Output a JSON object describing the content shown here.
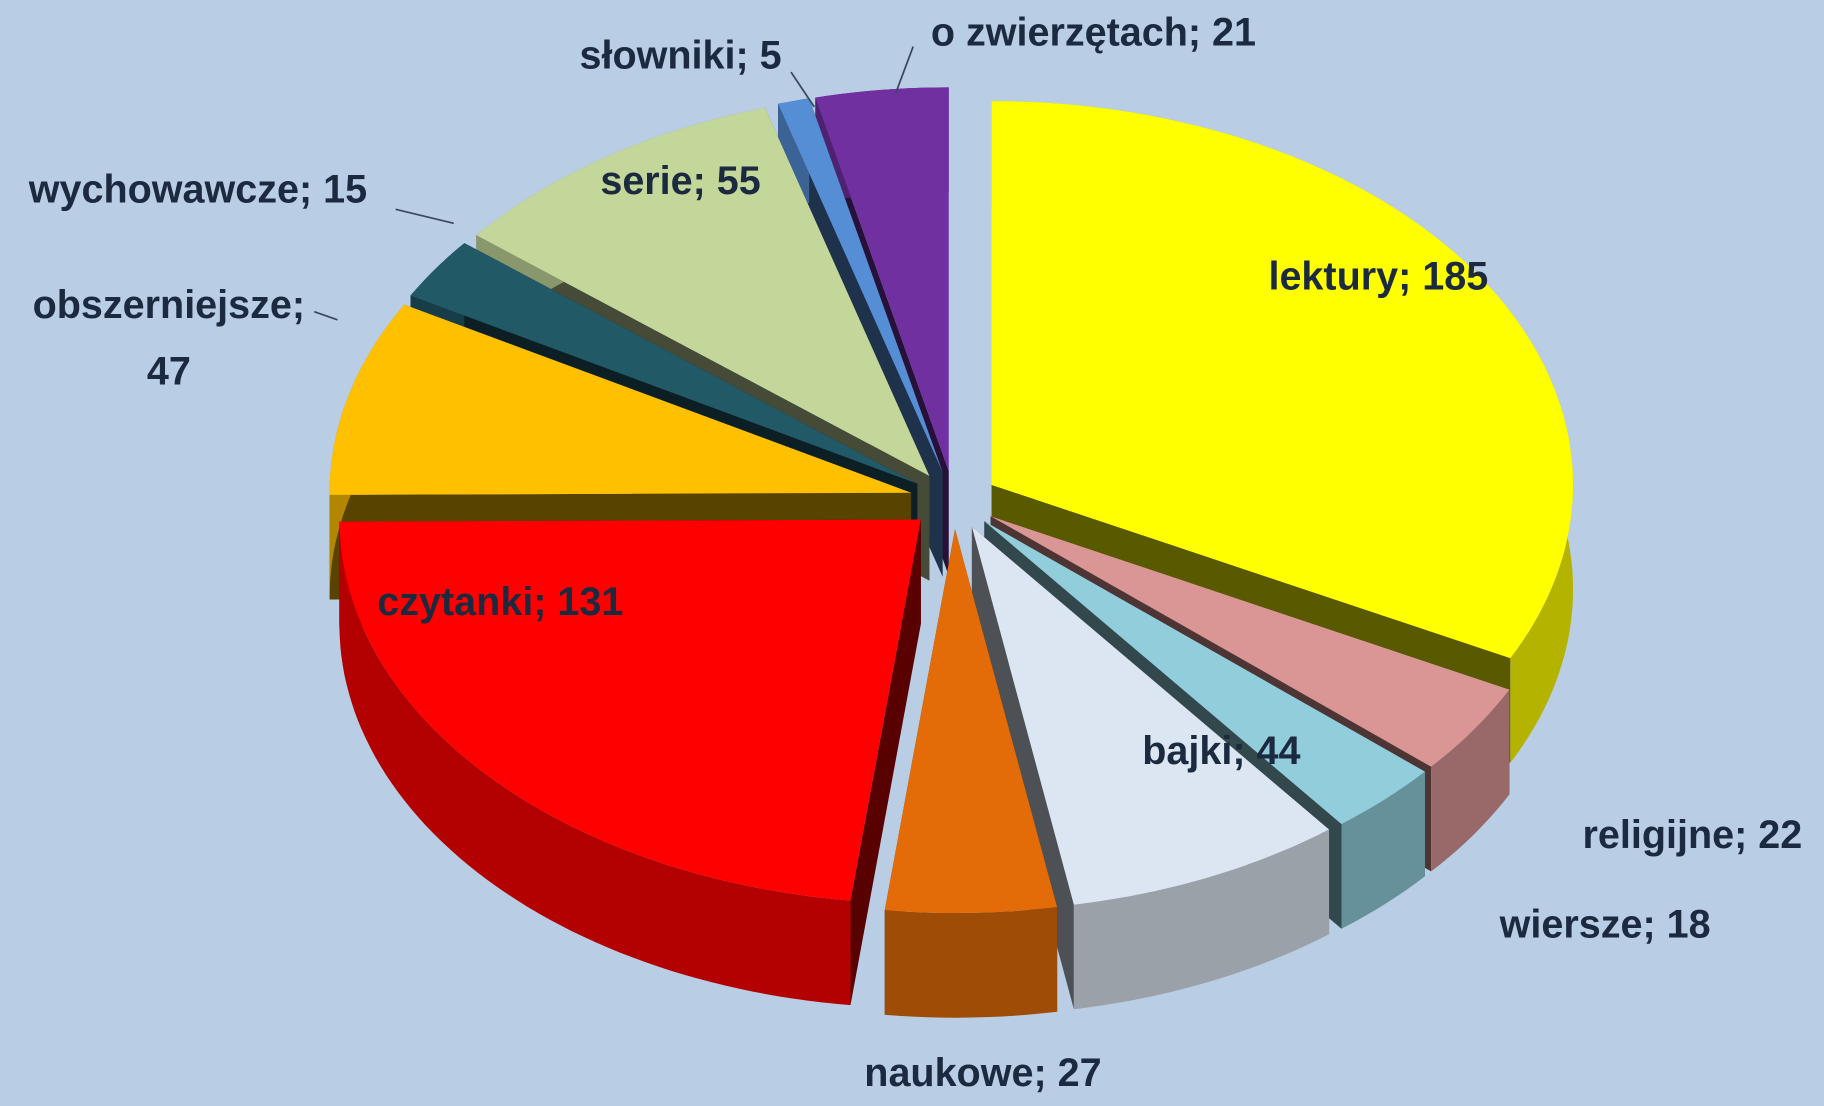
{
  "chart_data": {
    "type": "pie3d",
    "values": [
      185,
      22,
      18,
      44,
      27,
      131,
      47,
      15,
      55,
      5,
      21
    ],
    "value_labels": [
      "lektury; 185",
      "religijne; 22",
      "wiersze; 18",
      "bajki; 44",
      "naukowe; 27",
      "czytanki; 131",
      "obszerniejsze; 47",
      "wychowawcze; 15",
      "serie; 55",
      "słowniki; 5",
      "o zwierzętach; 21"
    ],
    "colors": [
      "#ffff00",
      "#d99694",
      "#92cddc",
      "#dce6f2",
      "#e36c09",
      "#ff0000",
      "#ffc000",
      "#215967",
      "#c4d79b",
      "#558ed5",
      "#7030a0"
    ]
  }
}
